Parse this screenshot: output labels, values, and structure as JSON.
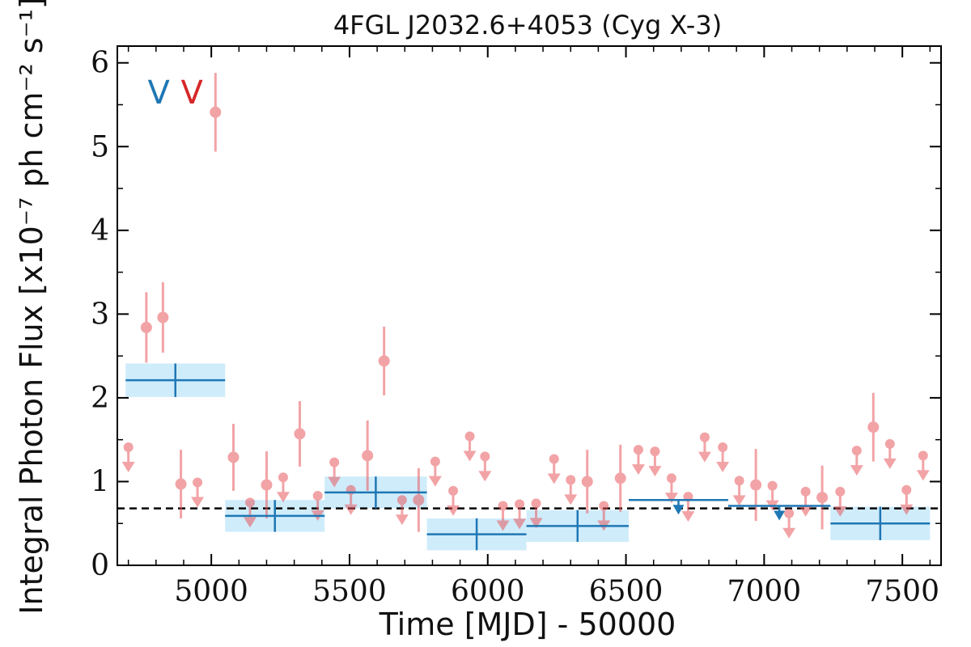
{
  "chart_data": {
    "type": "scatter",
    "title": "4FGL J2032.6+4053 (Cyg X-3)",
    "xlabel": "Time [MJD] - 50000",
    "ylabel": "Integral Photon Flux [x10⁻⁷ ph cm⁻² s⁻¹]",
    "xlim": [
      4660,
      7640
    ],
    "ylim": [
      0,
      6.2
    ],
    "xticks": [
      "5000",
      "5500",
      "6000",
      "6500",
      "7000",
      "7500"
    ],
    "yticks": [
      "0",
      "1",
      "2",
      "3",
      "4",
      "5",
      "6"
    ],
    "xtick_values": [
      5000,
      5500,
      6000,
      6500,
      7000,
      7500
    ],
    "ytick_values": [
      0,
      1,
      2,
      3,
      4,
      5,
      6
    ],
    "reference_level": 0.68,
    "colors": {
      "short_bins": "#e8595e",
      "long_bins": "#1f77b4",
      "long_band": "#cfecfb",
      "reference": "#000000"
    },
    "top_markers": [
      {
        "label": "V",
        "color": "#1f77b4",
        "x": 4810
      },
      {
        "label": "V",
        "color": "#d62728",
        "x": 4930
      }
    ],
    "series": [
      {
        "name": "",
        "points": [
          {
            "x": 4700,
            "y": 1.41,
            "ul": true
          },
          {
            "x": 4765,
            "y": 2.84,
            "err": 0.42
          },
          {
            "x": 4825,
            "y": 2.96,
            "err": 0.42
          },
          {
            "x": 4890,
            "y": 0.97,
            "err": 0.41
          },
          {
            "x": 4950,
            "y": 0.99,
            "ul": true
          },
          {
            "x": 5015,
            "y": 5.41,
            "err": 0.47
          },
          {
            "x": 5080,
            "y": 1.29,
            "err": 0.4
          },
          {
            "x": 5140,
            "y": 0.75,
            "ul": true
          },
          {
            "x": 5200,
            "y": 0.96,
            "err": 0.4
          },
          {
            "x": 5260,
            "y": 1.05,
            "ul": true
          },
          {
            "x": 5320,
            "y": 1.57,
            "err": 0.39
          },
          {
            "x": 5385,
            "y": 0.83,
            "ul": true
          },
          {
            "x": 5445,
            "y": 1.23,
            "ul": true
          },
          {
            "x": 5505,
            "y": 0.9,
            "ul": true
          },
          {
            "x": 5565,
            "y": 1.31,
            "err": 0.42
          },
          {
            "x": 5625,
            "y": 2.44,
            "err": 0.41
          },
          {
            "x": 5690,
            "y": 0.78,
            "ul": true
          },
          {
            "x": 5750,
            "y": 0.78,
            "err": 0.38
          },
          {
            "x": 5810,
            "y": 1.24,
            "ul": true
          },
          {
            "x": 5875,
            "y": 0.89,
            "ul": true
          },
          {
            "x": 5935,
            "y": 1.54,
            "ul": true
          },
          {
            "x": 5990,
            "y": 1.3,
            "ul": true
          },
          {
            "x": 6055,
            "y": 0.71,
            "ul": true
          },
          {
            "x": 6115,
            "y": 0.73,
            "ul": true
          },
          {
            "x": 6175,
            "y": 0.74,
            "ul": true
          },
          {
            "x": 6240,
            "y": 1.27,
            "ul": true
          },
          {
            "x": 6300,
            "y": 1.02,
            "ul": true
          },
          {
            "x": 6360,
            "y": 1.0,
            "err": 0.38
          },
          {
            "x": 6420,
            "y": 0.71,
            "ul": true
          },
          {
            "x": 6480,
            "y": 1.04,
            "err": 0.4
          },
          {
            "x": 6545,
            "y": 1.38,
            "ul": true
          },
          {
            "x": 6605,
            "y": 1.36,
            "ul": true
          },
          {
            "x": 6665,
            "y": 1.04,
            "ul": true
          },
          {
            "x": 6725,
            "y": 0.82,
            "ul": true
          },
          {
            "x": 6785,
            "y": 1.53,
            "ul": true
          },
          {
            "x": 6850,
            "y": 1.41,
            "ul": true
          },
          {
            "x": 6910,
            "y": 1.01,
            "ul": true
          },
          {
            "x": 6970,
            "y": 0.96,
            "err": 0.43
          },
          {
            "x": 7030,
            "y": 0.95,
            "ul": true
          },
          {
            "x": 7090,
            "y": 0.62,
            "ul": true
          },
          {
            "x": 7150,
            "y": 0.88,
            "ul": true
          },
          {
            "x": 7210,
            "y": 0.81,
            "err": 0.38
          },
          {
            "x": 7275,
            "y": 0.88,
            "ul": true
          },
          {
            "x": 7335,
            "y": 1.37,
            "ul": true
          },
          {
            "x": 7395,
            "y": 1.65,
            "err": 0.41
          },
          {
            "x": 7455,
            "y": 1.45,
            "ul": true
          },
          {
            "x": 7515,
            "y": 0.9,
            "ul": true
          },
          {
            "x": 7575,
            "y": 1.31,
            "ul": true
          }
        ]
      },
      {
        "name": "",
        "bins": [
          {
            "x0": 4690,
            "x1": 5050,
            "y": 2.21,
            "lo": 2.01,
            "hi": 2.41
          },
          {
            "x0": 5050,
            "x1": 5410,
            "y": 0.59,
            "lo": 0.4,
            "hi": 0.78
          },
          {
            "x0": 5410,
            "x1": 5780,
            "y": 0.87,
            "lo": 0.68,
            "hi": 1.06
          },
          {
            "x0": 5780,
            "x1": 6140,
            "y": 0.37,
            "lo": 0.18,
            "hi": 0.56
          },
          {
            "x0": 6140,
            "x1": 6510,
            "y": 0.47,
            "lo": 0.28,
            "hi": 0.66
          },
          {
            "x0": 6510,
            "x1": 6870,
            "y": 0.78,
            "ul": true
          },
          {
            "x0": 6870,
            "x1": 7240,
            "y": 0.71,
            "ul": true
          },
          {
            "x0": 7240,
            "x1": 7600,
            "y": 0.5,
            "lo": 0.3,
            "hi": 0.7
          }
        ]
      }
    ]
  }
}
